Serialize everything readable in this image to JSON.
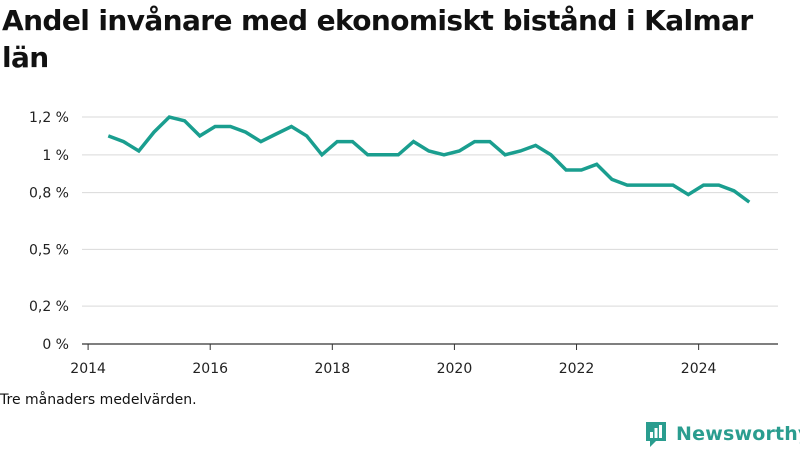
{
  "chart_data": {
    "type": "line",
    "title": "Andel invånare med ekonomiskt bistånd i Kalmar län",
    "note": "Tre månaders medelvärden.",
    "xlabel": "",
    "ylabel": "",
    "xlim": [
      2013.9,
      2025.3
    ],
    "ylim": [
      0,
      1.2
    ],
    "x_ticks": [
      2014,
      2016,
      2018,
      2020,
      2022,
      2024
    ],
    "y_ticks": [
      0,
      0.2,
      0.5,
      0.8,
      1,
      1.2
    ],
    "y_tick_labels": [
      "0 %",
      "0,2 %",
      "0,5 %",
      "0,8 %",
      "1 %",
      "1,2 %"
    ],
    "grid": "horizontal",
    "line_color": "#1a9e8f",
    "series": [
      {
        "x": [
          2014.33,
          2014.58,
          2014.83,
          2015.08,
          2015.33,
          2015.58,
          2015.83,
          2016.08,
          2016.33,
          2016.58,
          2016.83,
          2017.08,
          2017.33,
          2017.58,
          2017.83,
          2018.08,
          2018.33,
          2018.58,
          2018.83,
          2019.08,
          2019.33,
          2019.58,
          2019.83,
          2020.08,
          2020.33,
          2020.58,
          2020.83,
          2021.08,
          2021.33,
          2021.58,
          2021.83,
          2022.08,
          2022.33,
          2022.58,
          2022.83,
          2023.08,
          2023.33,
          2023.58,
          2023.83,
          2024.08,
          2024.33,
          2024.58,
          2024.83
        ],
        "values": [
          1.1,
          1.07,
          1.02,
          1.12,
          1.2,
          1.18,
          1.1,
          1.15,
          1.15,
          1.12,
          1.07,
          1.11,
          1.15,
          1.1,
          1.0,
          1.07,
          1.07,
          1.0,
          1.0,
          1.0,
          1.07,
          1.02,
          1.0,
          1.02,
          1.07,
          1.07,
          1.0,
          1.02,
          1.05,
          1.0,
          0.92,
          0.92,
          0.95,
          0.87,
          0.84,
          0.84,
          0.84,
          0.84,
          0.79,
          0.84,
          0.84,
          0.81,
          0.75
        ]
      }
    ]
  },
  "brand": {
    "name": "Newsworthy",
    "icon": "newsworthy-bar-chart-logo",
    "color": "#2a9d8f"
  }
}
